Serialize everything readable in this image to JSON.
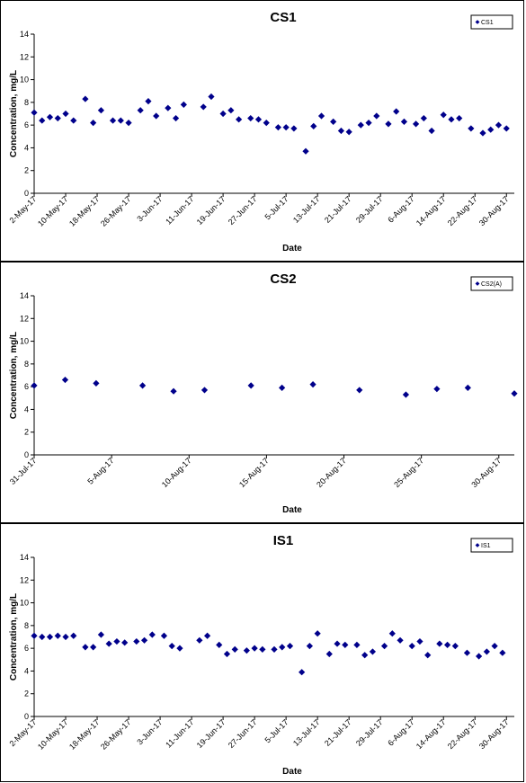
{
  "chart_data": [
    {
      "type": "scatter",
      "title": "CS1",
      "xlabel": "Date",
      "ylabel": "Concentration, mg/L",
      "ylim": [
        0,
        14
      ],
      "yticks": [
        "0",
        "2",
        "4",
        "6",
        "8",
        "10",
        "12",
        "14"
      ],
      "xlim": [
        "2017-05-02",
        "2017-09-01"
      ],
      "xticks": [
        "2-May-17",
        "10-May-17",
        "18-May-17",
        "26-May-17",
        "3-Jun-17",
        "11-Jun-17",
        "19-Jun-17",
        "27-Jun-17",
        "5-Jul-17",
        "13-Jul-17",
        "21-Jul-17",
        "29-Jul-17",
        "6-Aug-17",
        "14-Aug-17",
        "22-Aug-17",
        "30-Aug-17"
      ],
      "grid": false,
      "legend_position": "top-right",
      "marker_color": "#00008B",
      "series": [
        {
          "name": "CS1",
          "points": [
            [
              "2017-05-02",
              7.1
            ],
            [
              "2017-05-04",
              6.4
            ],
            [
              "2017-05-06",
              6.7
            ],
            [
              "2017-05-08",
              6.6
            ],
            [
              "2017-05-10",
              7.0
            ],
            [
              "2017-05-12",
              6.4
            ],
            [
              "2017-05-15",
              8.3
            ],
            [
              "2017-05-17",
              6.2
            ],
            [
              "2017-05-19",
              7.3
            ],
            [
              "2017-05-22",
              6.4
            ],
            [
              "2017-05-24",
              6.4
            ],
            [
              "2017-05-26",
              6.2
            ],
            [
              "2017-05-29",
              7.3
            ],
            [
              "2017-05-31",
              8.1
            ],
            [
              "2017-06-02",
              6.8
            ],
            [
              "2017-06-05",
              7.5
            ],
            [
              "2017-06-07",
              6.6
            ],
            [
              "2017-06-09",
              7.8
            ],
            [
              "2017-06-14",
              7.6
            ],
            [
              "2017-06-16",
              8.5
            ],
            [
              "2017-06-19",
              7.0
            ],
            [
              "2017-06-21",
              7.3
            ],
            [
              "2017-06-23",
              6.5
            ],
            [
              "2017-06-26",
              6.6
            ],
            [
              "2017-06-28",
              6.5
            ],
            [
              "2017-06-30",
              6.2
            ],
            [
              "2017-07-03",
              5.8
            ],
            [
              "2017-07-05",
              5.8
            ],
            [
              "2017-07-07",
              5.7
            ],
            [
              "2017-07-10",
              3.7
            ],
            [
              "2017-07-12",
              5.9
            ],
            [
              "2017-07-14",
              6.8
            ],
            [
              "2017-07-17",
              6.3
            ],
            [
              "2017-07-19",
              5.5
            ],
            [
              "2017-07-21",
              5.4
            ],
            [
              "2017-07-24",
              6.0
            ],
            [
              "2017-07-26",
              6.2
            ],
            [
              "2017-07-28",
              6.8
            ],
            [
              "2017-07-31",
              6.1
            ],
            [
              "2017-08-02",
              7.2
            ],
            [
              "2017-08-04",
              6.3
            ],
            [
              "2017-08-07",
              6.1
            ],
            [
              "2017-08-09",
              6.6
            ],
            [
              "2017-08-11",
              5.5
            ],
            [
              "2017-08-14",
              6.9
            ],
            [
              "2017-08-16",
              6.5
            ],
            [
              "2017-08-18",
              6.6
            ],
            [
              "2017-08-21",
              5.7
            ],
            [
              "2017-08-24",
              5.3
            ],
            [
              "2017-08-26",
              5.6
            ],
            [
              "2017-08-28",
              6.0
            ],
            [
              "2017-08-30",
              5.7
            ]
          ]
        }
      ]
    },
    {
      "type": "scatter",
      "title": "CS2",
      "xlabel": "Date",
      "ylabel": "Concentration, mg/L",
      "ylim": [
        0,
        14
      ],
      "yticks": [
        "0",
        "2",
        "4",
        "6",
        "8",
        "10",
        "12",
        "14"
      ],
      "xlim": [
        "2017-07-31",
        "2017-08-31"
      ],
      "xticks": [
        "31-Jul-17",
        "5-Aug-17",
        "10-Aug-17",
        "15-Aug-17",
        "20-Aug-17",
        "25-Aug-17",
        "30-Aug-17"
      ],
      "grid": false,
      "legend_position": "top-right",
      "marker_color": "#00008B",
      "series": [
        {
          "name": "CS2(A)",
          "points": [
            [
              "2017-07-31",
              6.1
            ],
            [
              "2017-08-02",
              6.6
            ],
            [
              "2017-08-04",
              6.3
            ],
            [
              "2017-08-07",
              6.1
            ],
            [
              "2017-08-09",
              5.6
            ],
            [
              "2017-08-11",
              5.7
            ],
            [
              "2017-08-14",
              6.1
            ],
            [
              "2017-08-16",
              5.9
            ],
            [
              "2017-08-18",
              6.2
            ],
            [
              "2017-08-21",
              5.7
            ],
            [
              "2017-08-24",
              5.3
            ],
            [
              "2017-08-26",
              5.8
            ],
            [
              "2017-08-28",
              5.9
            ],
            [
              "2017-08-31",
              5.4
            ]
          ]
        }
      ]
    },
    {
      "type": "scatter",
      "title": "IS1",
      "xlabel": "Date",
      "ylabel": "Concentration, mg/L",
      "ylim": [
        0,
        14
      ],
      "yticks": [
        "0",
        "2",
        "4",
        "6",
        "8",
        "10",
        "12",
        "14"
      ],
      "xlim": [
        "2017-05-02",
        "2017-09-01"
      ],
      "xticks": [
        "2-May-17",
        "10-May-17",
        "18-May-17",
        "26-May-17",
        "3-Jun-17",
        "11-Jun-17",
        "19-Jun-17",
        "27-Jun-17",
        "5-Jul-17",
        "13-Jul-17",
        "21-Jul-17",
        "29-Jul-17",
        "6-Aug-17",
        "14-Aug-17",
        "22-Aug-17",
        "30-Aug-17"
      ],
      "grid": false,
      "legend_position": "top-right",
      "marker_color": "#00008B",
      "series": [
        {
          "name": "IS1",
          "points": [
            [
              "2017-05-02",
              7.1
            ],
            [
              "2017-05-04",
              7.0
            ],
            [
              "2017-05-06",
              7.0
            ],
            [
              "2017-05-08",
              7.1
            ],
            [
              "2017-05-10",
              7.0
            ],
            [
              "2017-05-12",
              7.1
            ],
            [
              "2017-05-15",
              6.1
            ],
            [
              "2017-05-17",
              6.1
            ],
            [
              "2017-05-19",
              7.2
            ],
            [
              "2017-05-21",
              6.4
            ],
            [
              "2017-05-23",
              6.6
            ],
            [
              "2017-05-25",
              6.5
            ],
            [
              "2017-05-28",
              6.6
            ],
            [
              "2017-05-30",
              6.7
            ],
            [
              "2017-06-01",
              7.2
            ],
            [
              "2017-06-04",
              7.1
            ],
            [
              "2017-06-06",
              6.2
            ],
            [
              "2017-06-08",
              6.0
            ],
            [
              "2017-06-13",
              6.7
            ],
            [
              "2017-06-15",
              7.1
            ],
            [
              "2017-06-18",
              6.3
            ],
            [
              "2017-06-20",
              5.5
            ],
            [
              "2017-06-22",
              5.9
            ],
            [
              "2017-06-25",
              5.8
            ],
            [
              "2017-06-27",
              6.0
            ],
            [
              "2017-06-29",
              5.9
            ],
            [
              "2017-07-02",
              5.9
            ],
            [
              "2017-07-04",
              6.1
            ],
            [
              "2017-07-06",
              6.2
            ],
            [
              "2017-07-09",
              3.9
            ],
            [
              "2017-07-11",
              6.2
            ],
            [
              "2017-07-13",
              7.3
            ],
            [
              "2017-07-16",
              5.5
            ],
            [
              "2017-07-18",
              6.4
            ],
            [
              "2017-07-20",
              6.3
            ],
            [
              "2017-07-23",
              6.3
            ],
            [
              "2017-07-25",
              5.4
            ],
            [
              "2017-07-27",
              5.7
            ],
            [
              "2017-07-30",
              6.2
            ],
            [
              "2017-08-01",
              7.3
            ],
            [
              "2017-08-03",
              6.7
            ],
            [
              "2017-08-06",
              6.2
            ],
            [
              "2017-08-08",
              6.6
            ],
            [
              "2017-08-10",
              5.4
            ],
            [
              "2017-08-13",
              6.4
            ],
            [
              "2017-08-15",
              6.3
            ],
            [
              "2017-08-17",
              6.2
            ],
            [
              "2017-08-20",
              5.6
            ],
            [
              "2017-08-23",
              5.3
            ],
            [
              "2017-08-25",
              5.7
            ],
            [
              "2017-08-27",
              6.2
            ],
            [
              "2017-08-29",
              5.6
            ]
          ]
        }
      ]
    }
  ]
}
